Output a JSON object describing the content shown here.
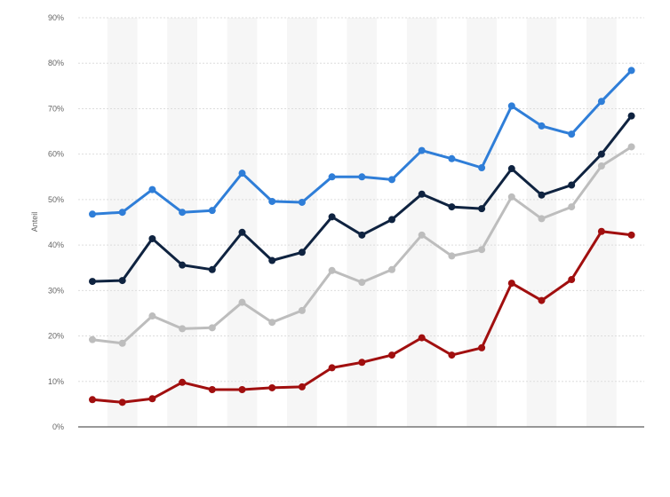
{
  "chart_data": {
    "type": "line",
    "ylabel": "Anteil",
    "xlabel": "",
    "ylim": [
      0,
      90
    ],
    "yticks": [
      0,
      10,
      20,
      30,
      40,
      50,
      60,
      70,
      80,
      90
    ],
    "ytick_labels": [
      "0%",
      "10%",
      "20%",
      "30%",
      "40%",
      "50%",
      "60%",
      "70%",
      "80%",
      "90%"
    ],
    "grid": true,
    "x_count": 19,
    "series": [
      {
        "color": "#2f7ed8",
        "values": [
          46.8,
          47.2,
          52.2,
          47.2,
          47.6,
          55.8,
          49.6,
          49.4,
          55.0,
          55.0,
          54.4,
          60.8,
          59.0,
          57.0,
          70.6,
          66.2,
          64.4,
          71.6,
          78.4
        ]
      },
      {
        "color": "#0f2340",
        "values": [
          32.0,
          32.2,
          41.4,
          35.6,
          34.6,
          42.8,
          36.6,
          38.4,
          46.2,
          42.2,
          45.6,
          51.2,
          48.4,
          48.0,
          56.8,
          51.0,
          53.2,
          60.0,
          68.4
        ]
      },
      {
        "color": "#bdbdbd",
        "values": [
          19.2,
          18.4,
          24.4,
          21.6,
          21.8,
          27.4,
          23.0,
          25.6,
          34.4,
          31.8,
          34.6,
          42.2,
          37.6,
          39.0,
          50.6,
          45.8,
          48.4,
          57.4,
          61.6
        ]
      },
      {
        "color": "#a10f0f",
        "values": [
          6.0,
          5.4,
          6.2,
          9.8,
          8.2,
          8.2,
          8.6,
          8.8,
          13.0,
          14.2,
          15.8,
          19.6,
          15.8,
          17.4,
          31.6,
          27.8,
          32.4,
          43.0,
          42.2
        ]
      }
    ]
  }
}
